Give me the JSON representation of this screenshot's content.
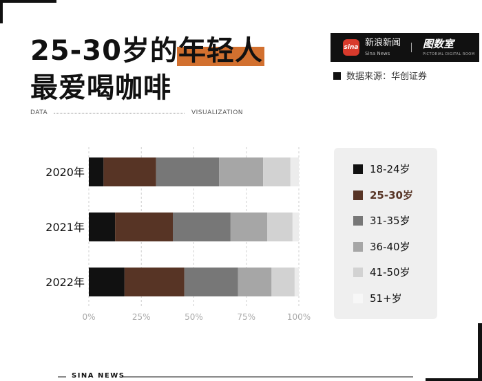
{
  "title": {
    "line1_a": "25-30岁的",
    "line1_b": "年轻人",
    "line2": "最爱喝咖啡"
  },
  "brand": {
    "name": "新浪新闻",
    "name_sub": "Sina News",
    "logo_text": "sina",
    "partner": "图数室",
    "partner_sub": "PICTORIAL DIGITAL ROOM"
  },
  "source": "数据来源：华创证券",
  "label_left": "DATA",
  "label_right": "VISUALIZATION",
  "footer": "SINA NEWS",
  "chart_data": {
    "type": "bar",
    "orientation": "horizontal",
    "stacked": true,
    "categories": [
      "2020年",
      "2021年",
      "2022年"
    ],
    "series": [
      {
        "name": "18-24岁",
        "color": "#111111",
        "values": [
          7,
          12.5,
          17
        ]
      },
      {
        "name": "25-30岁",
        "color": "#573425",
        "values": [
          25,
          27.5,
          28.5
        ]
      },
      {
        "name": "31-35岁",
        "color": "#777777",
        "values": [
          30,
          27.5,
          25.5
        ]
      },
      {
        "name": "36-40岁",
        "color": "#a6a6a6",
        "values": [
          21,
          17.5,
          16
        ]
      },
      {
        "name": "41-50岁",
        "color": "#d2d2d2",
        "values": [
          13,
          12,
          11
        ]
      },
      {
        "name": "51+岁",
        "color": "#ececec",
        "values": [
          4,
          3,
          2
        ]
      }
    ],
    "xticks": [
      "0%",
      "25%",
      "50%",
      "75%",
      "100%"
    ],
    "xlim": [
      0,
      100
    ],
    "grid": true,
    "legend_position": "right",
    "highlight_series": "25-30岁"
  }
}
